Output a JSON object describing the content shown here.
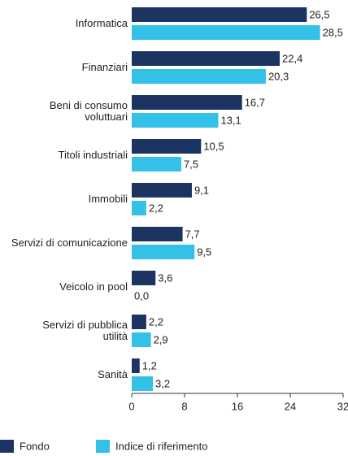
{
  "chart_data": {
    "type": "bar",
    "orientation": "horizontal",
    "categories": [
      "Informatica",
      "Finanziari",
      "Beni di consumo\nvoluttuari",
      "Titoli industriali",
      "Immobili",
      "Servizi di comunicazione",
      "Veicolo in pool",
      "Servizi di pubblica\nutilità",
      "Sanità"
    ],
    "series": [
      {
        "name": "Fondo",
        "color": "#1c3461",
        "values": [
          26.5,
          22.4,
          16.7,
          10.5,
          9.1,
          7.7,
          3.6,
          2.2,
          1.2
        ],
        "value_labels": [
          "26,5",
          "22,4",
          "16,7",
          "10,5",
          "9,1",
          "7,7",
          "3,6",
          "2,2",
          "1,2"
        ]
      },
      {
        "name": "Indice di riferimento",
        "color": "#33c1e8",
        "values": [
          28.5,
          20.3,
          13.1,
          7.5,
          2.2,
          9.5,
          0.0,
          2.9,
          3.2
        ],
        "value_labels": [
          "28,5",
          "20,3",
          "13,1",
          "7,5",
          "2,2",
          "9,5",
          "0,0",
          "2,9",
          "3,2"
        ]
      }
    ],
    "xlim": [
      0,
      32
    ],
    "xticks": [
      0,
      8,
      16,
      24,
      32
    ],
    "legend": "bottom-left"
  }
}
